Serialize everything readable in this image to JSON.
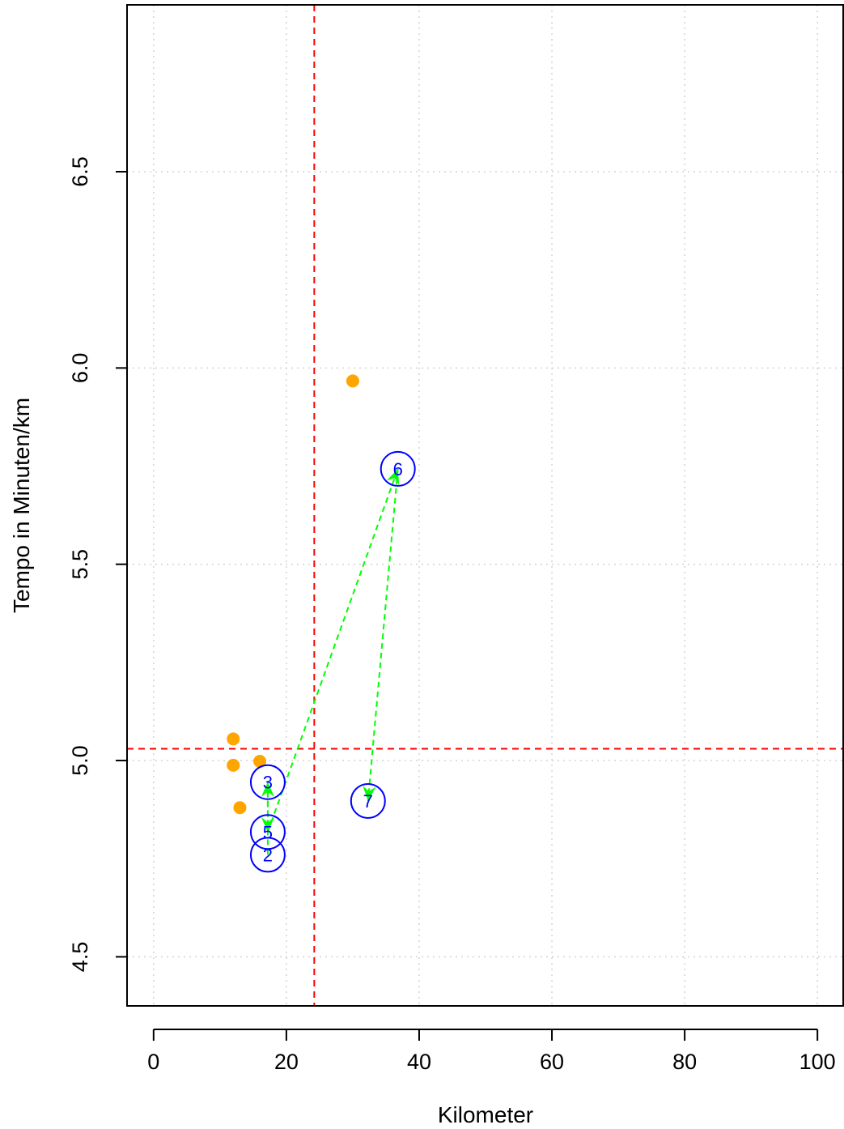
{
  "chart_data": {
    "type": "scatter",
    "xlabel": "Kilometer",
    "ylabel": "Tempo in Minuten/km",
    "xlim": [
      -4,
      104
    ],
    "ylim": [
      4.375,
      6.925
    ],
    "x_ticks": [
      0,
      20,
      40,
      60,
      80,
      100
    ],
    "x_tick_labels": [
      "0",
      "20",
      "40",
      "60",
      "80",
      "100"
    ],
    "y_ticks": [
      4.5,
      5.0,
      5.5,
      6.0,
      6.5
    ],
    "y_tick_labels": [
      "4.5",
      "5.0",
      "5.5",
      "6.0",
      "6.5"
    ],
    "grid": true,
    "reference_lines": {
      "vertical_x": 24.2,
      "horizontal_y": 5.03,
      "color": "#ff0000"
    },
    "background_points": {
      "color": "#ffa500",
      "points": [
        {
          "x": 12.0,
          "y": 5.055
        },
        {
          "x": 12.0,
          "y": 4.988
        },
        {
          "x": 16.0,
          "y": 4.998
        },
        {
          "x": 13.0,
          "y": 4.88
        },
        {
          "x": 30.0,
          "y": 5.967
        }
      ]
    },
    "labeled_runs": {
      "color": "#0000ff",
      "points": [
        {
          "label": "2",
          "x": 17.2,
          "y": 4.76
        },
        {
          "label": "3",
          "x": 17.2,
          "y": 4.945
        },
        {
          "label": "5",
          "x": 17.2,
          "y": 4.818
        },
        {
          "label": "6",
          "x": 36.8,
          "y": 5.743
        },
        {
          "label": "7",
          "x": 32.3,
          "y": 4.897
        }
      ]
    },
    "arrows": {
      "color": "#00ff00",
      "segments": [
        {
          "from": "2",
          "to": "3"
        },
        {
          "from": "3",
          "to": "5"
        },
        {
          "from": "5",
          "to": "6"
        },
        {
          "from": "6",
          "to": "7"
        }
      ]
    }
  }
}
